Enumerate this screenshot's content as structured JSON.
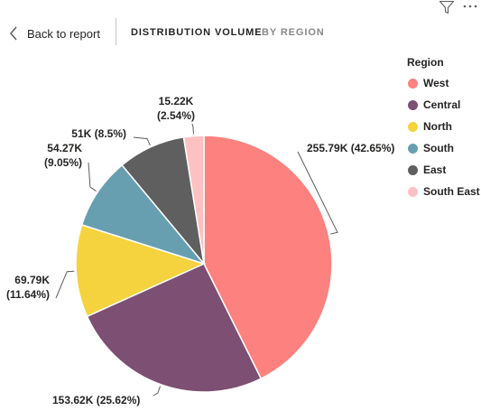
{
  "nav": {
    "back_label": "Back to report",
    "tab_active": "DISTRIBUTION VOLUME",
    "tab_inactive": "BY REGION"
  },
  "icons": {
    "filter": "filter-icon",
    "more": "more-options-icon",
    "back": "chevron-left-icon"
  },
  "legend": {
    "title": "Region",
    "items": [
      {
        "label": "West",
        "color": "#FD817E"
      },
      {
        "label": "Central",
        "color": "#7D4F73"
      },
      {
        "label": "North",
        "color": "#F5D33F"
      },
      {
        "label": "South",
        "color": "#689FB0"
      },
      {
        "label": "East",
        "color": "#5F5F5F"
      },
      {
        "label": "South East",
        "color": "#FEC1C1"
      }
    ]
  },
  "chart_data": {
    "type": "pie",
    "title": "",
    "series": [
      {
        "name": "West",
        "value": 255.79,
        "label": "255.79K (42.65%)",
        "color": "#FD817E"
      },
      {
        "name": "Central",
        "value": 153.62,
        "label": "153.62K (25.62%)",
        "color": "#7D4F73"
      },
      {
        "name": "North",
        "value": 69.79,
        "label": "69.79K|(11.64%)",
        "color": "#F5D33F"
      },
      {
        "name": "South",
        "value": 54.27,
        "label": "54.27K|(9.05%)",
        "color": "#689FB0"
      },
      {
        "name": "East",
        "value": 51,
        "label": "51K (8.5%)",
        "color": "#5F5F5F"
      },
      {
        "name": "South East",
        "value": 15.22,
        "label": "15.22K|(2.54%)",
        "color": "#FEC1C1"
      }
    ],
    "legend_position": "right"
  }
}
